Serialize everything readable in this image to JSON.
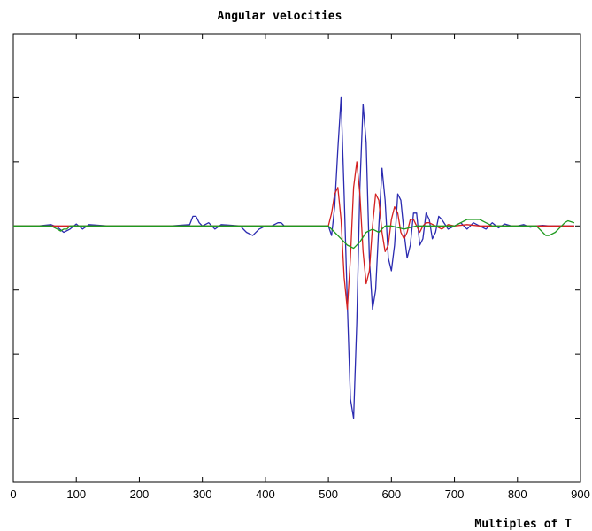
{
  "chart_data": {
    "type": "line",
    "title": "Angular velocities",
    "xlabel": "Multiples of T",
    "ylabel": "",
    "xlim": [
      0,
      900
    ],
    "ylim": [
      -4,
      3
    ],
    "xticks": [
      0,
      100,
      200,
      300,
      400,
      500,
      600,
      700,
      800,
      900
    ],
    "xtick_labels": [
      "0",
      "100",
      "200",
      "300",
      "400",
      "500",
      "600",
      "700",
      "800",
      "900"
    ],
    "yticks": [
      -4,
      -3,
      -2,
      -1,
      0,
      1,
      2,
      3
    ],
    "ytick_labels": [],
    "grid": false,
    "colors": {
      "blue": "#2b2bb0",
      "red": "#d42020",
      "green": "#1f9a1f"
    },
    "series": [
      {
        "color": "#2b2bb0",
        "x": [
          0,
          40,
          60,
          70,
          80,
          90,
          100,
          110,
          120,
          150,
          200,
          250,
          280,
          285,
          290,
          295,
          300,
          310,
          320,
          330,
          360,
          370,
          380,
          390,
          400,
          410,
          420,
          425,
          430,
          440,
          480,
          500,
          505,
          510,
          515,
          520,
          525,
          530,
          535,
          540,
          545,
          550,
          555,
          560,
          565,
          570,
          575,
          580,
          585,
          590,
          595,
          600,
          605,
          610,
          615,
          620,
          625,
          630,
          635,
          640,
          645,
          650,
          655,
          660,
          665,
          670,
          675,
          680,
          690,
          700,
          710,
          720,
          730,
          740,
          750,
          760,
          770,
          780,
          790,
          800,
          810,
          820,
          830,
          840,
          850,
          860,
          870,
          880,
          890
        ],
        "y": [
          0,
          0,
          0.02,
          -0.02,
          -0.1,
          -0.05,
          0.03,
          -0.05,
          0.02,
          0,
          0,
          0,
          0.02,
          0.15,
          0.15,
          0.05,
          0,
          0.05,
          -0.05,
          0.02,
          0,
          -0.1,
          -0.15,
          -0.05,
          0,
          0,
          0.05,
          0.05,
          0,
          0,
          0,
          0,
          -0.15,
          0.3,
          1.2,
          2.0,
          0.5,
          -1.2,
          -2.7,
          -3.0,
          -1.5,
          0.6,
          1.9,
          1.3,
          -0.5,
          -1.3,
          -1.0,
          0,
          0.9,
          0.4,
          -0.5,
          -0.7,
          -0.3,
          0.5,
          0.4,
          -0.1,
          -0.5,
          -0.3,
          0.2,
          0.2,
          -0.3,
          -0.2,
          0.2,
          0.1,
          -0.2,
          -0.1,
          0.15,
          0.1,
          -0.05,
          0,
          0.05,
          -0.05,
          0.05,
          0,
          -0.05,
          0.05,
          -0.03,
          0.03,
          0,
          0,
          0.02,
          -0.02,
          0,
          0.01,
          0,
          0,
          0,
          0,
          0
        ]
      },
      {
        "color": "#d42020",
        "x": [
          0,
          500,
          505,
          510,
          515,
          520,
          525,
          530,
          535,
          540,
          545,
          550,
          555,
          560,
          565,
          570,
          575,
          580,
          585,
          590,
          595,
          600,
          605,
          610,
          615,
          620,
          625,
          630,
          635,
          640,
          645,
          650,
          655,
          660,
          670,
          680,
          690,
          700,
          720,
          740,
          760,
          780,
          800,
          820,
          850,
          890
        ],
        "y": [
          0,
          0,
          0.2,
          0.5,
          0.6,
          0.1,
          -0.8,
          -1.3,
          -0.5,
          0.6,
          1.0,
          0.5,
          -0.4,
          -0.9,
          -0.7,
          0,
          0.5,
          0.4,
          -0.1,
          -0.4,
          -0.3,
          0.1,
          0.3,
          0.2,
          -0.1,
          -0.2,
          -0.1,
          0.1,
          0.1,
          0,
          -0.1,
          0,
          0.05,
          0.05,
          0,
          -0.05,
          0.02,
          0,
          0.02,
          0,
          0,
          0,
          0,
          0,
          0,
          0
        ]
      },
      {
        "color": "#1f9a1f",
        "x": [
          0,
          60,
          70,
          75,
          80,
          85,
          90,
          100,
          200,
          300,
          400,
          480,
          500,
          510,
          520,
          530,
          540,
          550,
          560,
          570,
          580,
          590,
          600,
          620,
          640,
          660,
          680,
          700,
          710,
          720,
          730,
          740,
          750,
          760,
          780,
          800,
          820,
          830,
          840,
          845,
          850,
          860,
          870,
          875,
          880,
          890
        ],
        "y": [
          0,
          0,
          -0.05,
          -0.08,
          -0.05,
          -0.05,
          0,
          0,
          0,
          0,
          0,
          0,
          0,
          -0.1,
          -0.2,
          -0.3,
          -0.35,
          -0.25,
          -0.1,
          -0.05,
          -0.1,
          0,
          0,
          -0.05,
          0,
          0,
          0,
          0,
          0.05,
          0.1,
          0.1,
          0.1,
          0.05,
          0,
          0,
          0,
          0,
          0,
          -0.1,
          -0.15,
          -0.15,
          -0.1,
          0,
          0.05,
          0.08,
          0.05
        ]
      }
    ]
  }
}
